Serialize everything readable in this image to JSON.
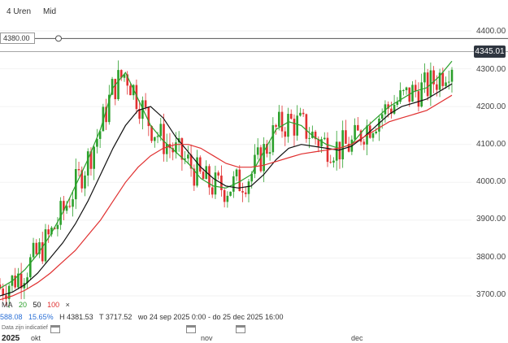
{
  "timeframes": [
    "4 Uren",
    "Mid"
  ],
  "price_line_label": "4380.00",
  "last_price": "4345.01",
  "y_axis_labels": [
    "4400.00",
    "4300.00",
    "4200.00",
    "4100.00",
    "4000.00",
    "3900.00",
    "3800.00",
    "3700.00"
  ],
  "legend": {
    "label": "MA",
    "p1": "20",
    "p2": "50",
    "p3": "100",
    "close": "×"
  },
  "stats": {
    "price": "588.08",
    "change": "15.65%",
    "high": "H 4381.53",
    "low": "T 3717.52",
    "range": "wo 24 sep 2025 0:00 - do 25 dec 2025 16:00"
  },
  "note": "Data zijn indicatief",
  "x_axis": {
    "year": "2025",
    "months": [
      "okt",
      "nov",
      "dec"
    ]
  },
  "colors": {
    "ma20": "#2ca02c",
    "ma50": "#111111",
    "ma100": "#e03030",
    "up": "#2ca02c",
    "down": "#e03030",
    "change": "#2a6fd6"
  },
  "chart_data": {
    "type": "line",
    "title": "",
    "ylim": [
      3680,
      4420
    ],
    "x_range": [
      "2025-09-24",
      "2025-12-25"
    ],
    "series": [
      {
        "name": "20",
        "values": [
          3720,
          3740,
          3770,
          3810,
          3860,
          3920,
          3990,
          4060,
          4140,
          4250,
          4290,
          4220,
          4150,
          4110,
          4080,
          4050,
          4010,
          3990,
          3985,
          4000,
          4020,
          4080,
          4140,
          4160,
          4150,
          4120,
          4100,
          4090,
          4100,
          4140,
          4170,
          4200,
          4220,
          4240,
          4250,
          4280,
          4320
        ]
      },
      {
        "name": "50",
        "values": [
          3700,
          3710,
          3730,
          3760,
          3800,
          3840,
          3890,
          3950,
          4020,
          4090,
          4150,
          4190,
          4200,
          4170,
          4120,
          4080,
          4040,
          4010,
          3990,
          3985,
          3990,
          4020,
          4060,
          4090,
          4100,
          4095,
          4090,
          4085,
          4095,
          4120,
          4150,
          4180,
          4200,
          4210,
          4220,
          4240,
          4260
        ]
      },
      {
        "name": "100",
        "values": [
          3690,
          3700,
          3715,
          3735,
          3760,
          3790,
          3820,
          3860,
          3900,
          3950,
          4000,
          4040,
          4070,
          4090,
          4100,
          4100,
          4090,
          4070,
          4050,
          4040,
          4040,
          4045,
          4055,
          4065,
          4075,
          4080,
          4085,
          4090,
          4100,
          4120,
          4140,
          4160,
          4170,
          4180,
          4190,
          4210,
          4230
        ]
      }
    ]
  }
}
